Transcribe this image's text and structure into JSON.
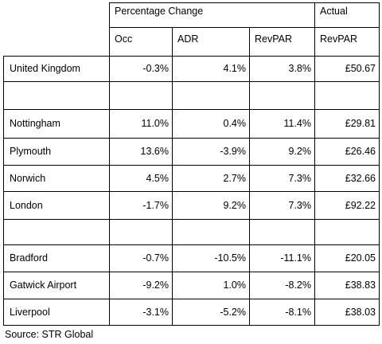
{
  "table": {
    "header_group": "Percentage Change",
    "header_actual": "Actual",
    "columns": [
      "Occ",
      "ADR",
      "RevPAR",
      "RevPAR"
    ],
    "rows": [
      {
        "name": "United Kingdom",
        "occ": "-0.3%",
        "adr": "4.1%",
        "revpar": "3.8%",
        "actual": "£50.67"
      },
      {
        "name": "",
        "occ": "",
        "adr": "",
        "revpar": "",
        "actual": ""
      },
      {
        "name": "Nottingham",
        "occ": "11.0%",
        "adr": "0.4%",
        "revpar": "11.4%",
        "actual": "£29.81"
      },
      {
        "name": "Plymouth",
        "occ": "13.6%",
        "adr": "-3.9%",
        "revpar": "9.2%",
        "actual": "£26.46"
      },
      {
        "name": "Norwich",
        "occ": "4.5%",
        "adr": "2.7%",
        "revpar": "7.3%",
        "actual": "£32.66"
      },
      {
        "name": "London",
        "occ": "-1.7%",
        "adr": "9.2%",
        "revpar": "7.3%",
        "actual": "£92.22"
      },
      {
        "name": "",
        "occ": "",
        "adr": "",
        "revpar": "",
        "actual": ""
      },
      {
        "name": "Bradford",
        "occ": "-0.7%",
        "adr": "-10.5%",
        "revpar": "-11.1%",
        "actual": "£20.05"
      },
      {
        "name": "Gatwick Airport",
        "occ": "-9.2%",
        "adr": "1.0%",
        "revpar": "-8.2%",
        "actual": "£38.83"
      },
      {
        "name": "Liverpool",
        "occ": "-3.1%",
        "adr": "-5.2%",
        "revpar": "-8.1%",
        "actual": "£38.03"
      }
    ]
  },
  "source": "Source: STR Global"
}
